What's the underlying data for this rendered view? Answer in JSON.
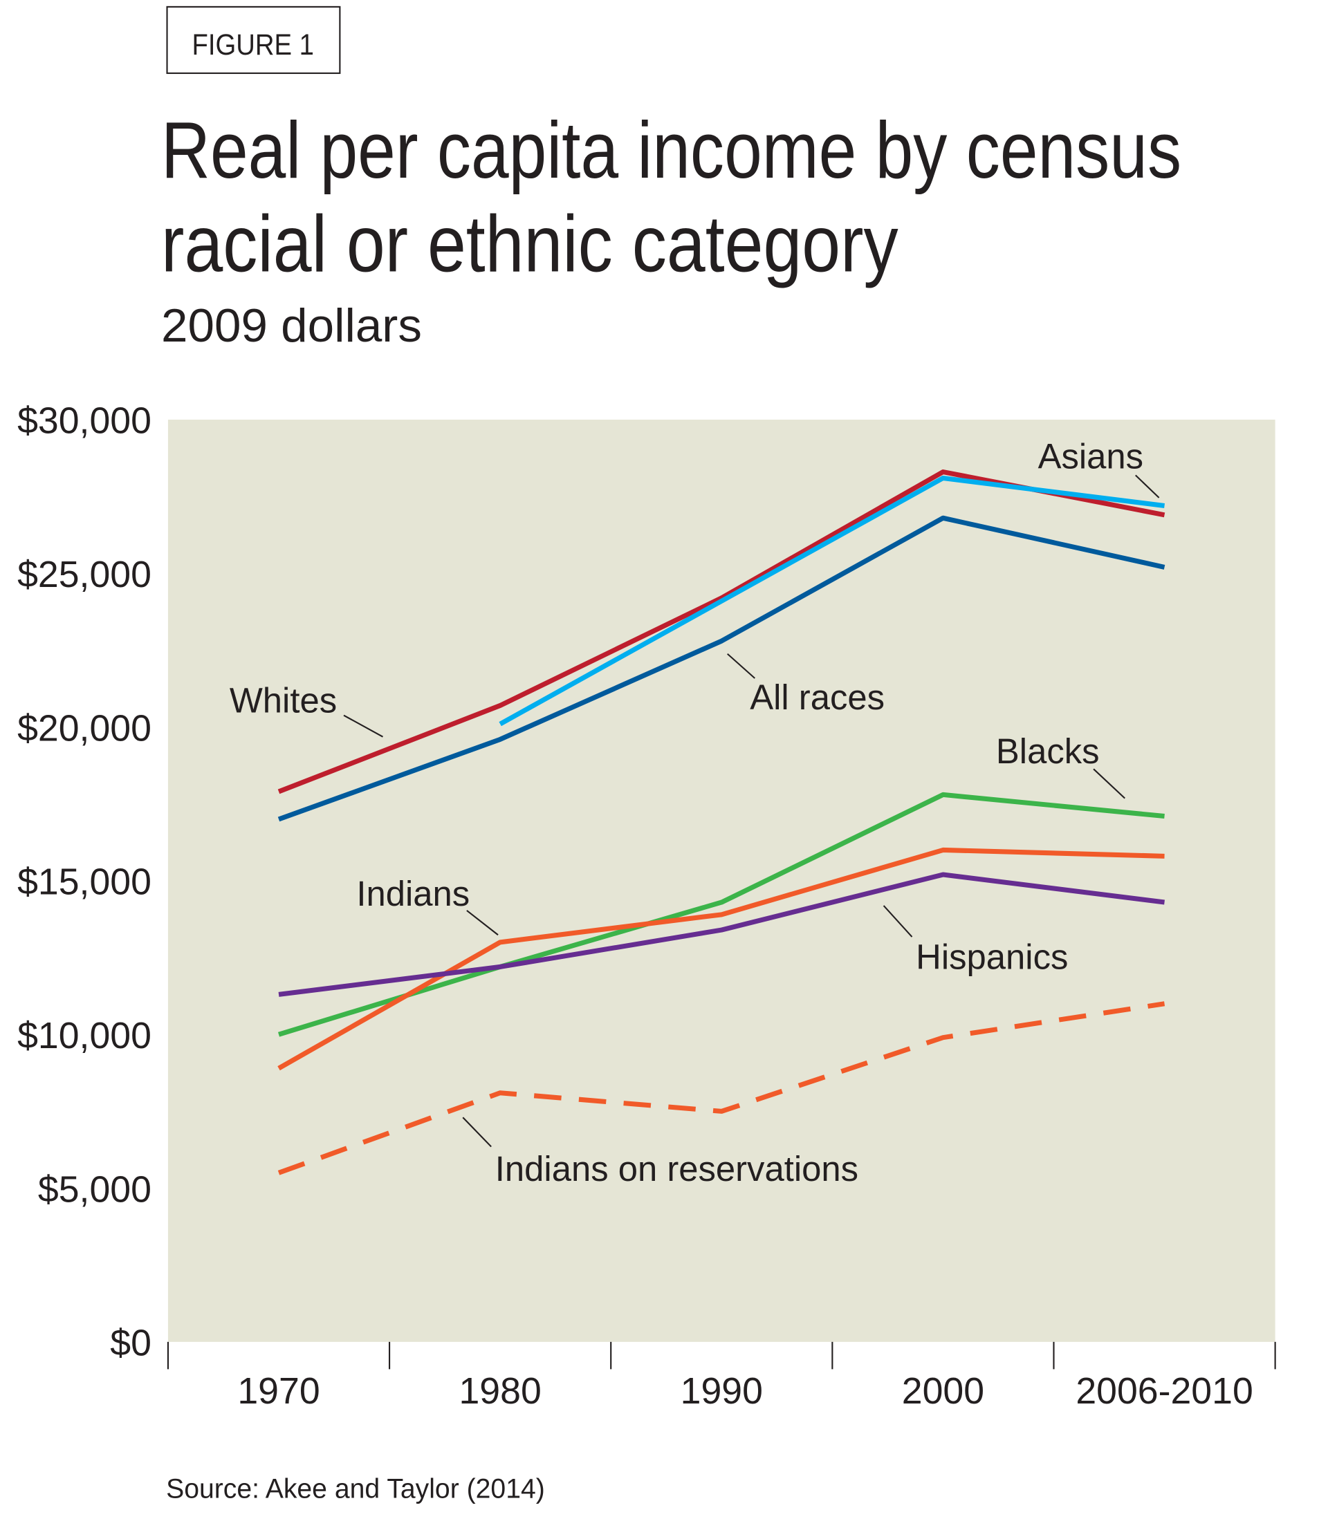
{
  "figure_label": "FIGURE 1",
  "title_line1": "Real per capita income by census",
  "title_line2": "racial or ethnic category",
  "subtitle": "2009 dollars",
  "source": "Source: Akee and Taylor (2014)",
  "chart_data": {
    "type": "line",
    "title": "Real per capita income by census racial or ethnic category",
    "subtitle": "2009 dollars",
    "categories": [
      "1970",
      "1980",
      "1990",
      "2000",
      "2006-2010"
    ],
    "ylim": [
      0,
      30000
    ],
    "yticks": [
      0,
      5000,
      10000,
      15000,
      20000,
      25000,
      30000
    ],
    "ytick_labels": [
      "$0",
      "$5,000",
      "$10,000",
      "$15,000",
      "$20,000",
      "$25,000",
      "$30,000"
    ],
    "grid": false,
    "background": "#e5e5d5",
    "series": [
      {
        "name": "Whites",
        "color": "#be1e2d",
        "dashed": false,
        "values": [
          17900,
          20700,
          24200,
          28300,
          26900
        ]
      },
      {
        "name": "Asians",
        "color": "#00aeef",
        "dashed": false,
        "values": [
          null,
          20100,
          24100,
          28100,
          27200
        ]
      },
      {
        "name": "All races",
        "color": "#005a9c",
        "dashed": false,
        "values": [
          17000,
          19600,
          22800,
          26800,
          25200
        ]
      },
      {
        "name": "Blacks",
        "color": "#3cb44a",
        "dashed": false,
        "values": [
          10000,
          12200,
          14300,
          17800,
          17100
        ]
      },
      {
        "name": "Indians",
        "color": "#f15a29",
        "dashed": false,
        "values": [
          8900,
          13000,
          13900,
          16000,
          15800
        ]
      },
      {
        "name": "Hispanics",
        "color": "#662d91",
        "dashed": false,
        "values": [
          11300,
          12200,
          13400,
          15200,
          14300
        ]
      },
      {
        "name": "Indians on reservations",
        "color": "#f15a29",
        "dashed": true,
        "values": [
          5500,
          8100,
          7500,
          9900,
          11000
        ]
      }
    ]
  }
}
